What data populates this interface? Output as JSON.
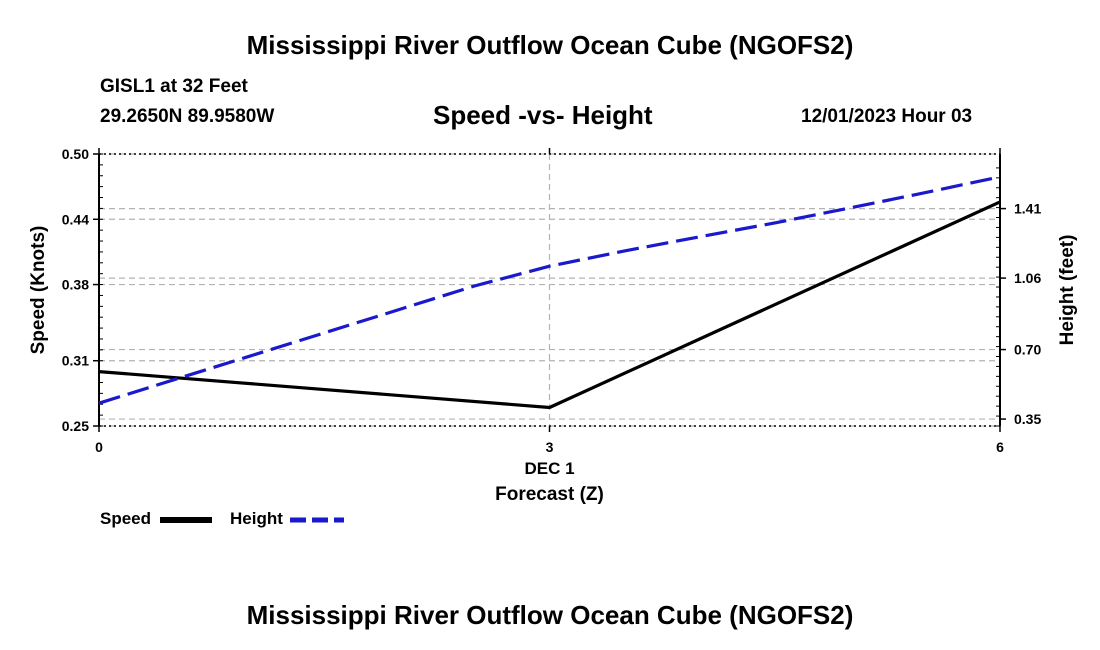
{
  "header": {
    "title": "Mississippi River Outflow Ocean Cube (NGOFS2)",
    "station": "GISL1 at 32 Feet",
    "coords": "29.2650N  89.9580W",
    "subtitle": "Speed -vs- Height",
    "datetime": "12/01/2023 Hour 03"
  },
  "footer": {
    "title": "Mississippi River Outflow Ocean Cube (NGOFS2)"
  },
  "chart_data": {
    "type": "line",
    "title": "Speed -vs- Height",
    "xlabel": "Forecast (Z)",
    "x_date_label": "DEC 1",
    "ylabel": "Speed (Knots)",
    "y2label": "Height (feet)",
    "x": [
      0,
      3,
      6
    ],
    "x_tick_labels": [
      "0",
      "3",
      "6"
    ],
    "xlim": [
      0,
      6
    ],
    "ylim": [
      0.25,
      0.5
    ],
    "y_ticks": [
      0.25,
      0.31,
      0.38,
      0.44,
      0.5
    ],
    "y_tick_labels": [
      "0.25",
      "0.31",
      "0.38",
      "0.44",
      "0.50"
    ],
    "y2lim": [
      0.315,
      1.685
    ],
    "y2_ticks": [
      0.35,
      0.7,
      1.06,
      1.41
    ],
    "y2_tick_labels": [
      "0.35",
      "0.70",
      "1.06",
      "1.41"
    ],
    "grid": true,
    "legend_position": "bottom-left",
    "series": [
      {
        "name": "Speed",
        "axis": "left",
        "style": "solid",
        "color": "#000000",
        "x": [
          0,
          3,
          6
        ],
        "values": [
          0.3,
          0.267,
          0.456
        ]
      },
      {
        "name": "Height",
        "axis": "right",
        "style": "dashed",
        "color": "#1a1acc",
        "x": [
          0,
          0.5,
          1,
          1.5,
          2,
          2.5,
          3,
          3.5,
          4,
          4.5,
          5,
          5.5,
          6
        ],
        "values": [
          0.43,
          0.548,
          0.666,
          0.784,
          0.902,
          1.02,
          1.12,
          1.197,
          1.268,
          1.338,
          1.413,
          1.49,
          1.57
        ]
      }
    ]
  }
}
